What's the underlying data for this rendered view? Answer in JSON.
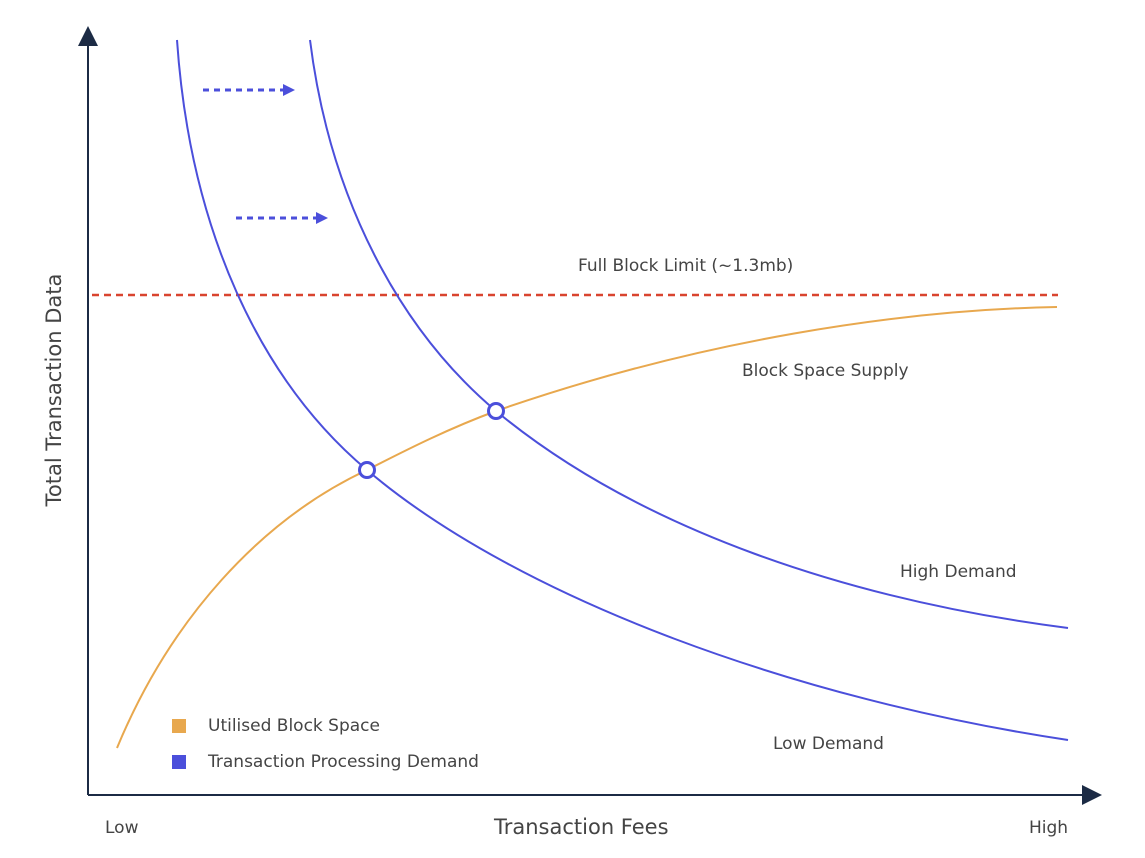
{
  "colors": {
    "supply": "#E8A84E",
    "demand": "#4B4FDB",
    "limit": "#D9442F",
    "axis": "#1C2B45"
  },
  "axes": {
    "x_title": "Transaction Fees",
    "y_title": "Total Transaction Data",
    "x_low": "Low",
    "x_high": "High"
  },
  "annotations": {
    "limit": "Full Block Limit (~1.3mb)",
    "supply": "Block Space Supply",
    "high_demand": "High Demand",
    "low_demand": "Low Demand"
  },
  "legend": [
    {
      "label": "Utilised Block Space",
      "color": "#E8A84E"
    },
    {
      "label": "Transaction Processing Demand",
      "color": "#4B4FDB"
    }
  ]
}
